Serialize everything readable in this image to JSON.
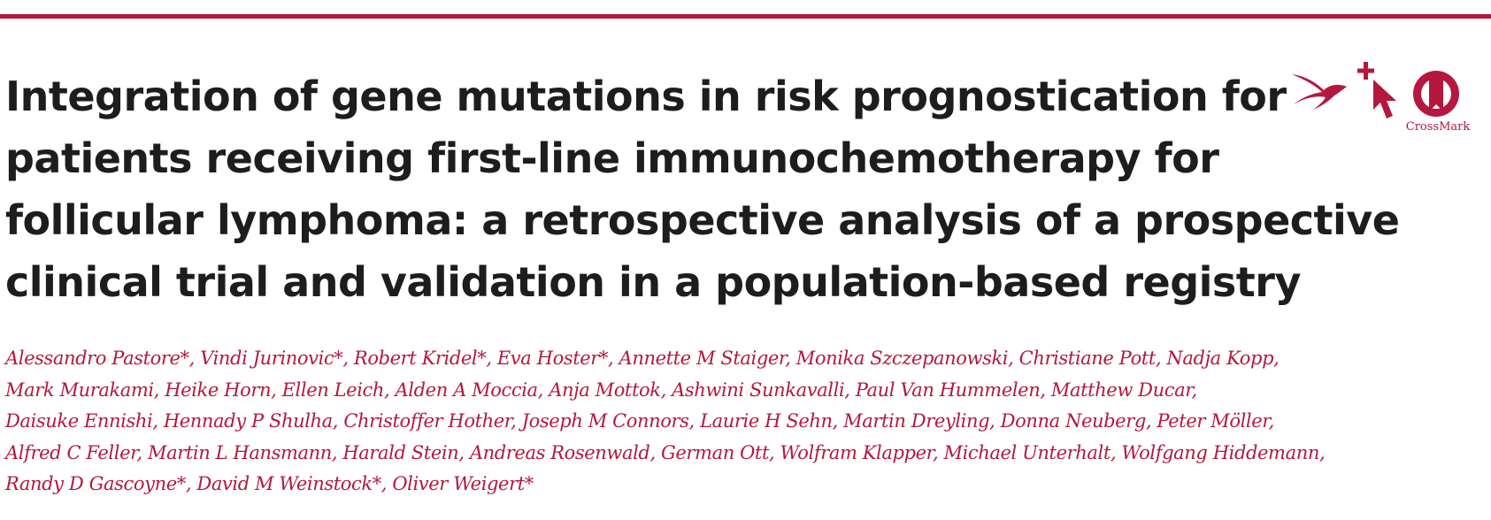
{
  "title_lines": [
    "Integration of gene mutations in risk prognostication for",
    "patients receiving first-line immunochemotherapy for",
    "follicular lymphoma: a retrospective analysis of a prospective",
    "clinical trial and validation in a population-based registry"
  ],
  "author_lines": [
    "Alessandro Pastore*, Vindi Jurinovic*, Robert Kridel*, Eva Hoster*, Annette M Staiger, Monika Szczepanowski, Christiane Pott, Nadja Kopp,",
    "Mark Murakami, Heike Horn, Ellen Leich, Alden A Moccia, Anja Mottok, Ashwini Sunkavalli, Paul Van Hummelen, Matthew Ducar,",
    "Daisuke Ennishi, Hennady P Shulha, Christoffer Hother, Joseph M Connors, Laurie H Sehn, Martin Dreyling, Donna Neuberg, Peter Möller,",
    "Alfred C Feller, Martin L Hansmann, Harald Stein, Andreas Rosenwald, German Ott, Wolfram Klapper, Michael Unterhalt, Wolfgang Hiddemann,",
    "Randy D Gascoyne*, David M Weinstock*, Oliver Weigert*"
  ],
  "icons": {
    "journal_logo": "swallow-icon",
    "select_icon": "cursor-plus-icon",
    "crossmark": "crossmark-icon",
    "crossmark_label": "CrossMark"
  },
  "colors": {
    "accent": "#b5173f",
    "title_text": "#1d1d1d"
  }
}
